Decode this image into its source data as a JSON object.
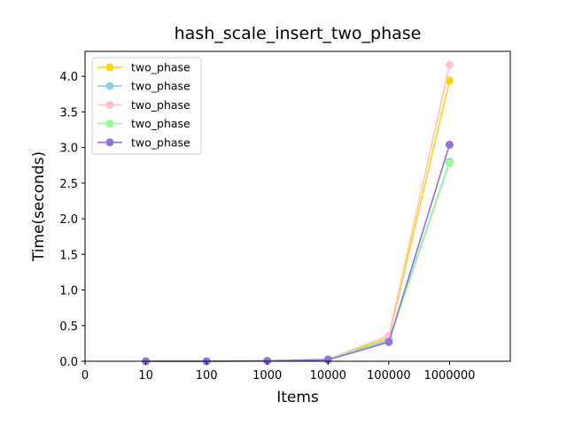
{
  "chart_data": {
    "type": "line",
    "title": "hash_scale_insert_two_phase",
    "xlabel": "Items",
    "ylabel": "Time(seconds)",
    "x_tick_labels": [
      "0",
      "10",
      "100",
      "1000",
      "10000",
      "100000",
      "1000000"
    ],
    "categories": [
      "10",
      "100",
      "1000",
      "10000",
      "100000",
      "1000000"
    ],
    "ylim": [
      0,
      4.35
    ],
    "y_ticks": [
      0.0,
      0.5,
      1.0,
      1.5,
      2.0,
      2.5,
      3.0,
      3.5,
      4.0
    ],
    "y_tick_labels": [
      "0.0",
      "0.5",
      "1.0",
      "1.5",
      "2.0",
      "2.5",
      "3.0",
      "3.5",
      "4.0"
    ],
    "grid": false,
    "legend_position": "top-left",
    "series": [
      {
        "name": "two_phase",
        "color": "#FFD700",
        "values": [
          0.0,
          0.0,
          0.005,
          0.03,
          0.33,
          3.94
        ]
      },
      {
        "name": "two_phase",
        "color": "#87CEEB",
        "values": [
          0.0,
          0.0,
          0.005,
          0.03,
          0.3,
          2.8
        ]
      },
      {
        "name": "two_phase",
        "color": "#FFC0CB",
        "values": [
          0.0,
          0.0,
          0.005,
          0.03,
          0.36,
          4.16
        ]
      },
      {
        "name": "two_phase",
        "color": "#98FB98",
        "values": [
          0.0,
          0.0,
          0.005,
          0.035,
          0.28,
          2.78
        ]
      },
      {
        "name": "two_phase",
        "color": "#9370DB",
        "values": [
          0.0,
          0.0,
          0.005,
          0.02,
          0.27,
          3.04
        ]
      }
    ]
  }
}
